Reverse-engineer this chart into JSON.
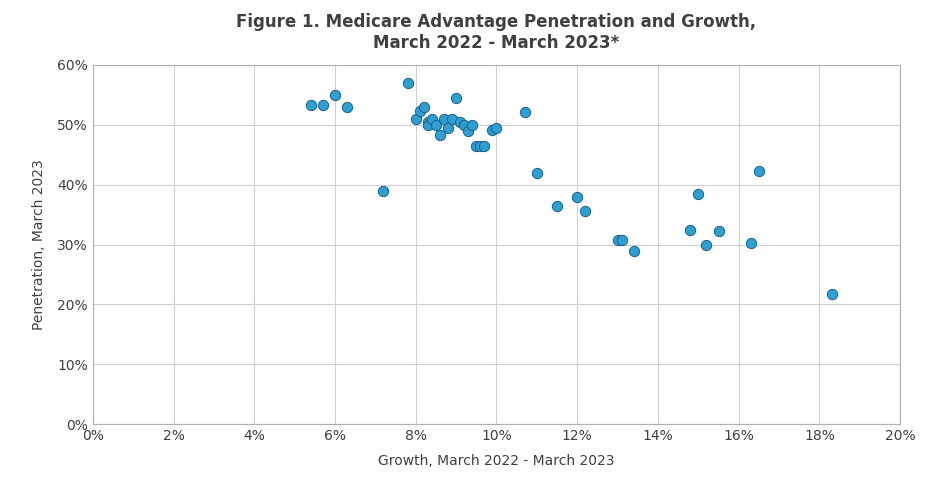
{
  "title": "Figure 1. Medicare Advantage Penetration and Growth,\nMarch 2022 - March 2023*",
  "xlabel": "Growth, March 2022 - March 2023",
  "ylabel": "Penetration, March 2023",
  "xlim": [
    0,
    0.2
  ],
  "ylim": [
    0,
    0.6
  ],
  "xticks": [
    0,
    0.02,
    0.04,
    0.06,
    0.08,
    0.1,
    0.12,
    0.14,
    0.16,
    0.18,
    0.2
  ],
  "yticks": [
    0,
    0.1,
    0.2,
    0.3,
    0.4,
    0.5,
    0.6
  ],
  "data_x": [
    0.054,
    0.057,
    0.06,
    0.063,
    0.072,
    0.078,
    0.08,
    0.081,
    0.082,
    0.083,
    0.083,
    0.084,
    0.085,
    0.086,
    0.087,
    0.088,
    0.089,
    0.09,
    0.091,
    0.092,
    0.093,
    0.094,
    0.095,
    0.096,
    0.097,
    0.099,
    0.1,
    0.107,
    0.11,
    0.115,
    0.12,
    0.122,
    0.13,
    0.131,
    0.134,
    0.148,
    0.15,
    0.152,
    0.155,
    0.163,
    0.165,
    0.183
  ],
  "data_y": [
    0.533,
    0.533,
    0.55,
    0.53,
    0.389,
    0.57,
    0.51,
    0.523,
    0.53,
    0.505,
    0.5,
    0.51,
    0.5,
    0.483,
    0.51,
    0.495,
    0.51,
    0.545,
    0.505,
    0.5,
    0.49,
    0.5,
    0.465,
    0.465,
    0.465,
    0.491,
    0.495,
    0.522,
    0.419,
    0.365,
    0.379,
    0.356,
    0.308,
    0.308,
    0.289,
    0.325,
    0.384,
    0.3,
    0.323,
    0.303,
    0.422,
    0.217
  ],
  "marker_color": "#2E9FD0",
  "marker_edge_color": "#1A5F8A",
  "marker_size": 55,
  "background_color": "#ffffff",
  "grid_color": "#D0D0D0",
  "title_fontsize": 12,
  "label_fontsize": 10,
  "tick_fontsize": 10,
  "title_color": "#404040",
  "label_color": "#404040",
  "tick_color": "#404040"
}
